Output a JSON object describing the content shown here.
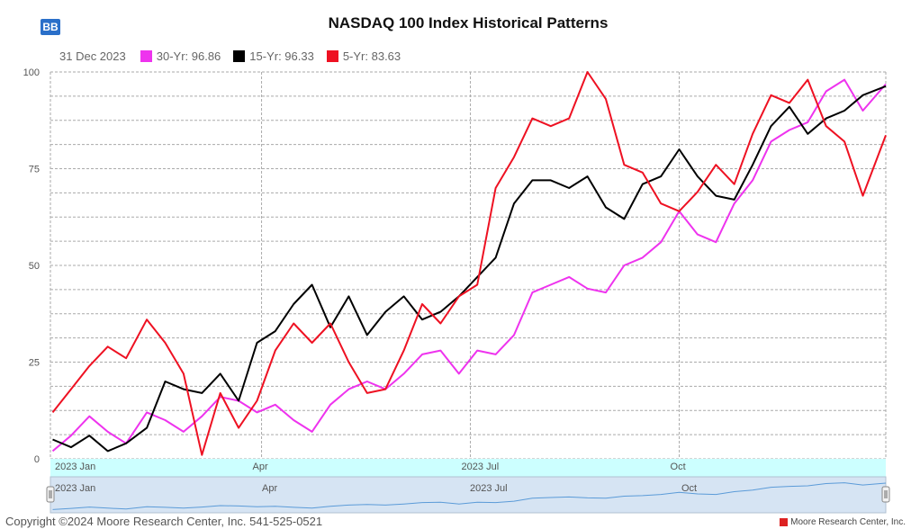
{
  "header": {
    "badge": "BB",
    "title": "NASDAQ 100 Index Historical Patterns"
  },
  "legend": {
    "date": "31 Dec 2023",
    "items": [
      {
        "label": "30-Yr: 96.86",
        "color": "#ee33ee"
      },
      {
        "label": "15-Yr: 96.33",
        "color": "#000000"
      },
      {
        "label": "5-Yr: 83.63",
        "color": "#ee1122"
      }
    ]
  },
  "footer": {
    "copyright": "Copyright ©2024 Moore Research Center, Inc. 541-525-0521",
    "brand": "Moore Research Center, Inc."
  },
  "navigator": {
    "labels": [
      "2023 Jan",
      "Apr",
      "2023 Jul",
      "Oct"
    ]
  },
  "chart_data": {
    "type": "line",
    "title": "NASDAQ 100 Index Historical Patterns",
    "ylim": [
      0,
      100
    ],
    "yticks": [
      0,
      25,
      50,
      75,
      100
    ],
    "xlim": [
      "2023-01-01",
      "2023-12-31"
    ],
    "xtick_labels": [
      {
        "date": "2023-01-03",
        "label": "2023 Jan"
      },
      {
        "date": "2023-04-03",
        "label": "Apr"
      },
      {
        "date": "2023-07-03",
        "label": "2023 Jul"
      },
      {
        "date": "2023-10-02",
        "label": "Oct"
      }
    ],
    "grid": true,
    "series": [
      {
        "name": "30-Yr",
        "color": "#ee33ee",
        "dates": [
          "2023-01-02",
          "2023-01-10",
          "2023-01-18",
          "2023-01-26",
          "2023-02-03",
          "2023-02-12",
          "2023-02-20",
          "2023-02-28",
          "2023-03-08",
          "2023-03-16",
          "2023-03-24",
          "2023-04-01",
          "2023-04-09",
          "2023-04-17",
          "2023-04-25",
          "2023-05-03",
          "2023-05-11",
          "2023-05-19",
          "2023-05-27",
          "2023-06-04",
          "2023-06-12",
          "2023-06-20",
          "2023-06-28",
          "2023-07-06",
          "2023-07-14",
          "2023-07-22",
          "2023-07-30",
          "2023-08-07",
          "2023-08-15",
          "2023-08-23",
          "2023-08-31",
          "2023-09-08",
          "2023-09-16",
          "2023-09-24",
          "2023-10-02",
          "2023-10-10",
          "2023-10-18",
          "2023-10-26",
          "2023-11-03",
          "2023-11-11",
          "2023-11-19",
          "2023-11-27",
          "2023-12-05",
          "2023-12-13",
          "2023-12-21",
          "2023-12-31"
        ],
        "values": [
          2,
          6,
          11,
          7,
          4,
          12,
          10,
          7,
          11,
          16,
          15,
          12,
          14,
          10,
          7,
          14,
          18,
          20,
          18,
          22,
          27,
          28,
          22,
          28,
          27,
          32,
          43,
          45,
          47,
          44,
          43,
          50,
          52,
          56,
          64,
          58,
          56,
          66,
          72,
          82,
          85,
          87,
          95,
          98,
          90,
          96.86
        ]
      },
      {
        "name": "15-Yr",
        "color": "#000000",
        "dates": [
          "2023-01-02",
          "2023-01-10",
          "2023-01-18",
          "2023-01-26",
          "2023-02-03",
          "2023-02-12",
          "2023-02-20",
          "2023-02-28",
          "2023-03-08",
          "2023-03-16",
          "2023-03-24",
          "2023-04-01",
          "2023-04-09",
          "2023-04-17",
          "2023-04-25",
          "2023-05-03",
          "2023-05-11",
          "2023-05-19",
          "2023-05-27",
          "2023-06-04",
          "2023-06-12",
          "2023-06-20",
          "2023-06-28",
          "2023-07-06",
          "2023-07-14",
          "2023-07-22",
          "2023-07-30",
          "2023-08-07",
          "2023-08-15",
          "2023-08-23",
          "2023-08-31",
          "2023-09-08",
          "2023-09-16",
          "2023-09-24",
          "2023-10-02",
          "2023-10-10",
          "2023-10-18",
          "2023-10-26",
          "2023-11-03",
          "2023-11-11",
          "2023-11-19",
          "2023-11-27",
          "2023-12-05",
          "2023-12-13",
          "2023-12-21",
          "2023-12-31"
        ],
        "values": [
          5,
          3,
          6,
          2,
          4,
          8,
          20,
          18,
          17,
          22,
          15,
          30,
          33,
          40,
          45,
          34,
          42,
          32,
          38,
          42,
          36,
          38,
          42,
          47,
          52,
          66,
          72,
          72,
          70,
          73,
          65,
          62,
          71,
          73,
          80,
          73,
          68,
          67,
          76,
          86,
          91,
          84,
          88,
          90,
          94,
          96.33
        ]
      },
      {
        "name": "5-Yr",
        "color": "#ee1122",
        "dates": [
          "2023-01-02",
          "2023-01-10",
          "2023-01-18",
          "2023-01-26",
          "2023-02-03",
          "2023-02-12",
          "2023-02-20",
          "2023-02-28",
          "2023-03-08",
          "2023-03-16",
          "2023-03-24",
          "2023-04-01",
          "2023-04-09",
          "2023-04-17",
          "2023-04-25",
          "2023-05-03",
          "2023-05-11",
          "2023-05-19",
          "2023-05-27",
          "2023-06-04",
          "2023-06-12",
          "2023-06-20",
          "2023-06-28",
          "2023-07-06",
          "2023-07-14",
          "2023-07-22",
          "2023-07-30",
          "2023-08-07",
          "2023-08-15",
          "2023-08-23",
          "2023-08-31",
          "2023-09-08",
          "2023-09-16",
          "2023-09-24",
          "2023-10-02",
          "2023-10-10",
          "2023-10-18",
          "2023-10-26",
          "2023-11-03",
          "2023-11-11",
          "2023-11-19",
          "2023-11-27",
          "2023-12-05",
          "2023-12-13",
          "2023-12-21",
          "2023-12-31"
        ],
        "values": [
          12,
          18,
          24,
          29,
          26,
          36,
          30,
          22,
          1,
          17,
          8,
          15,
          28,
          35,
          30,
          35,
          25,
          17,
          18,
          28,
          40,
          35,
          42,
          45,
          70,
          78,
          88,
          86,
          88,
          100,
          93,
          76,
          74,
          66,
          64,
          69,
          76,
          71,
          84,
          94,
          92,
          98,
          86,
          82,
          68,
          83.63
        ]
      }
    ]
  }
}
